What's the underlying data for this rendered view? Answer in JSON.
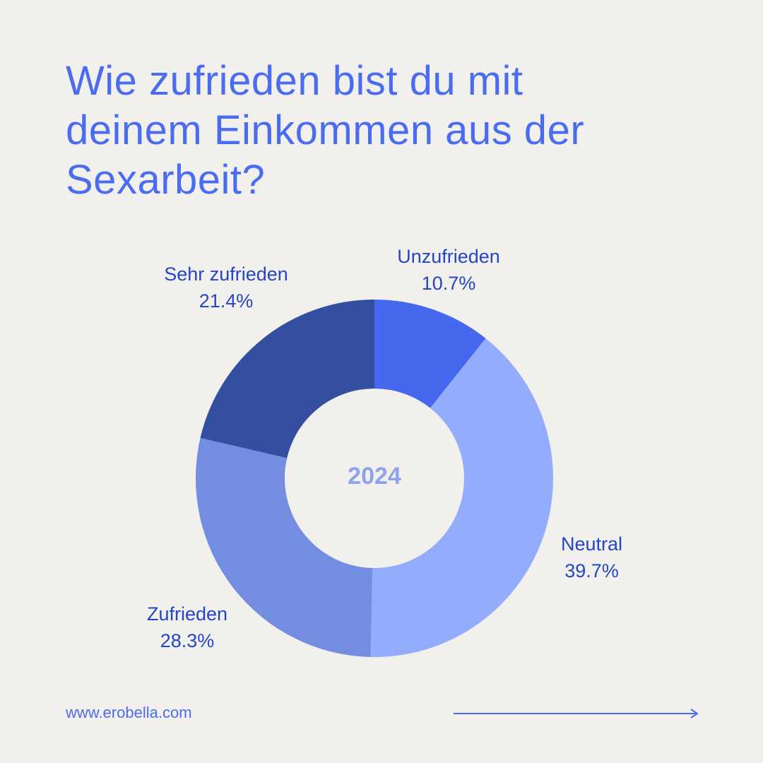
{
  "title_lines": [
    "Wie zufrieden bist du mit",
    "deinem Einkommen aus der",
    "Sexarbeit?"
  ],
  "chart_data": {
    "type": "pie",
    "donut": true,
    "center_text": "2024",
    "categories": [
      "Unzufrieden",
      "Neutral",
      "Zufrieden",
      "Sehr zufrieden"
    ],
    "values": [
      10.7,
      39.7,
      28.3,
      21.4
    ],
    "value_labels": [
      "10.7%",
      "39.7%",
      "28.3%",
      "21.4%"
    ],
    "colors": [
      "#4668ee",
      "#94acfc",
      "#738de0",
      "#344fa0"
    ],
    "start_angle": "12 o'clock",
    "direction": "clockwise"
  },
  "footer": {
    "url": "www.erobella.com",
    "arrow_icon": "arrow-right-icon"
  },
  "colors": {
    "background": "#f1f0ed",
    "title": "#4a6cf0",
    "label": "#2446c6",
    "center": "#8fa3ec"
  }
}
